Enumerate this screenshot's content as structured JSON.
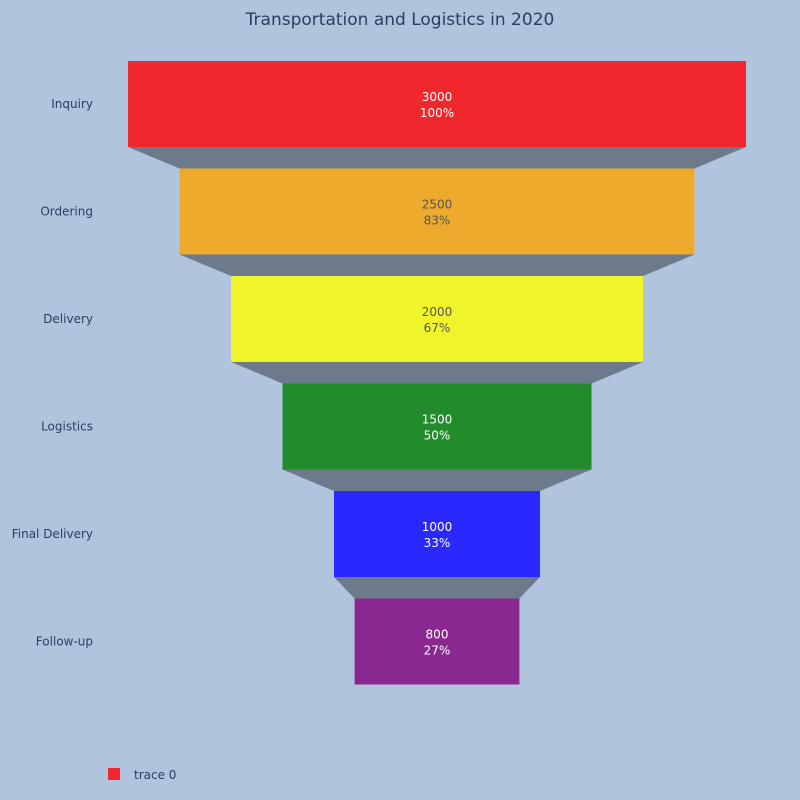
{
  "chart_data": {
    "type": "funnel",
    "title": "Transportation and Logistics in 2020",
    "categories": [
      "Inquiry",
      "Ordering",
      "Delivery",
      "Logistics",
      "Final Delivery",
      "Follow-up"
    ],
    "values": [
      3000,
      2500,
      2000,
      1500,
      1000,
      800
    ],
    "percent_labels": [
      "100%",
      "83%",
      "67%",
      "50%",
      "33%",
      "27%"
    ],
    "colors": [
      "#f0272d",
      "#eeaa2d",
      "#eff52a",
      "#228c2c",
      "#2828ff",
      "#882890"
    ],
    "label_colors": [
      "#ffffff",
      "#555555",
      "#555555",
      "#ffffff",
      "#ffffff",
      "#ffffff"
    ],
    "connector_color": "#6d7a8c",
    "legend": {
      "entries": [
        "trace 0"
      ],
      "placement": "bottom-left"
    }
  }
}
